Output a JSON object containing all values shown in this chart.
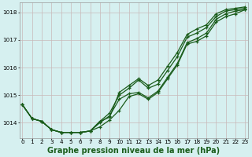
{
  "x": [
    0,
    1,
    2,
    3,
    4,
    5,
    6,
    7,
    8,
    9,
    10,
    11,
    12,
    13,
    14,
    15,
    16,
    17,
    18,
    19,
    20,
    21,
    22,
    23
  ],
  "line1": [
    1014.65,
    1014.15,
    1014.05,
    1013.75,
    1013.65,
    1013.65,
    1013.65,
    1013.7,
    1013.85,
    1014.1,
    1014.45,
    1014.95,
    1015.05,
    1014.85,
    1015.1,
    1015.6,
    1016.1,
    1016.85,
    1016.95,
    1017.15,
    1017.65,
    1017.85,
    1017.95,
    1018.1
  ],
  "line2": [
    1014.65,
    1014.15,
    1014.05,
    1013.75,
    1013.65,
    1013.65,
    1013.65,
    1013.7,
    1014.0,
    1014.25,
    1014.85,
    1015.05,
    1015.1,
    1014.9,
    1015.15,
    1015.65,
    1016.15,
    1016.9,
    1017.05,
    1017.25,
    1017.75,
    1017.95,
    1018.05,
    1018.1
  ],
  "line3": [
    1014.65,
    1014.15,
    1014.05,
    1013.75,
    1013.65,
    1013.65,
    1013.65,
    1013.7,
    1014.05,
    1014.35,
    1015.0,
    1015.25,
    1015.55,
    1015.25,
    1015.4,
    1015.9,
    1016.4,
    1017.1,
    1017.25,
    1017.45,
    1017.85,
    1018.05,
    1018.1,
    1018.15
  ],
  "line4": [
    1014.65,
    1014.15,
    1014.05,
    1013.75,
    1013.65,
    1013.65,
    1013.65,
    1013.7,
    1014.05,
    1014.2,
    1015.1,
    1015.35,
    1015.6,
    1015.35,
    1015.55,
    1016.05,
    1016.55,
    1017.2,
    1017.4,
    1017.55,
    1017.95,
    1018.1,
    1018.15,
    1018.2
  ],
  "bg_color": "#d6f0f0",
  "grid_color": "#c8b8b8",
  "line_color": "#1a5c1a",
  "ylabel_ticks": [
    1014,
    1015,
    1016,
    1017,
    1018
  ],
  "xlabel_ticks": [
    0,
    1,
    2,
    3,
    4,
    5,
    6,
    7,
    8,
    9,
    10,
    11,
    12,
    13,
    14,
    15,
    16,
    17,
    18,
    19,
    20,
    21,
    22,
    23
  ],
  "xlim": [
    -0.3,
    23.3
  ],
  "ylim": [
    1013.45,
    1018.35
  ],
  "xlabel": "Graphe pression niveau de la mer (hPa)",
  "title_color": "#1a5c1a",
  "tick_fontsize": 5.2,
  "label_fontsize": 7.0
}
